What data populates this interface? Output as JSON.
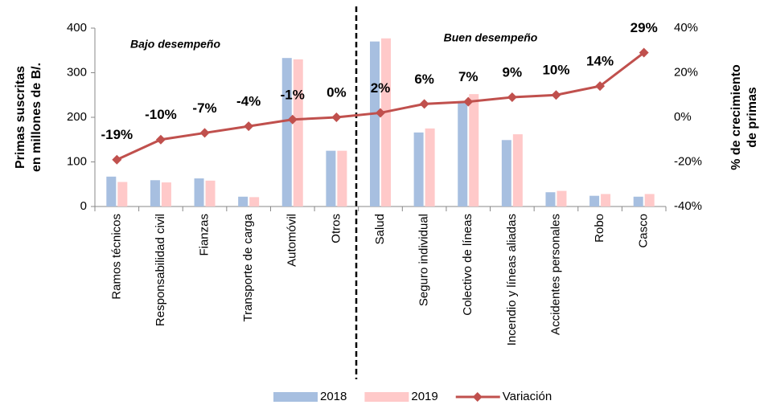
{
  "chart_data": {
    "type": "bar",
    "categories": [
      "Ramos técnicos",
      "Responsabilidad civil",
      "Fianzas",
      "Transporte de carga",
      "Automóvil",
      "Otros",
      "Salud",
      "Seguro individual",
      "Colectivo de líneas",
      "Incendio y líneas aliadas",
      "Accidentes personales",
      "Robo",
      "Casco"
    ],
    "series": [
      {
        "name": "2018",
        "color": "#a7bfe0",
        "values": [
          67,
          59,
          63,
          22,
          333,
          125,
          370,
          166,
          235,
          149,
          32,
          24,
          22
        ]
      },
      {
        "name": "2019",
        "color": "#ffc9c9",
        "values": [
          55,
          54,
          58,
          21,
          330,
          125,
          377,
          175,
          252,
          162,
          35,
          28,
          28
        ]
      },
      {
        "name": "Variación",
        "type": "line",
        "axis": "y2",
        "color": "#c0504d",
        "values": [
          -19,
          -10,
          -7,
          -4,
          -1,
          0,
          2,
          6,
          7,
          9,
          10,
          14,
          29
        ],
        "value_labels": [
          "-19%",
          "-10%",
          "-7%",
          "-4%",
          "-1%",
          "0%",
          "2%",
          "6%",
          "7%",
          "9%",
          "10%",
          "14%",
          "29%"
        ]
      }
    ],
    "ylabel": [
      "Primas suscritas",
      "en millones de B/."
    ],
    "y2label": [
      "% de crecimiento",
      "de primas"
    ],
    "annotations": [
      "Bajo desempeño",
      "Buen desempeño"
    ],
    "ylim": [
      0,
      400
    ],
    "yticks": [
      0,
      100,
      200,
      300,
      400
    ],
    "y2lim": [
      -40,
      40
    ],
    "y2ticks": [
      {
        "value": -40,
        "label": "-40%"
      },
      {
        "value": -20,
        "label": "-20%"
      },
      {
        "value": 0,
        "label": "0%"
      },
      {
        "value": 20,
        "label": "20%"
      },
      {
        "value": 40,
        "label": "40%"
      }
    ],
    "legend": "bottom"
  }
}
